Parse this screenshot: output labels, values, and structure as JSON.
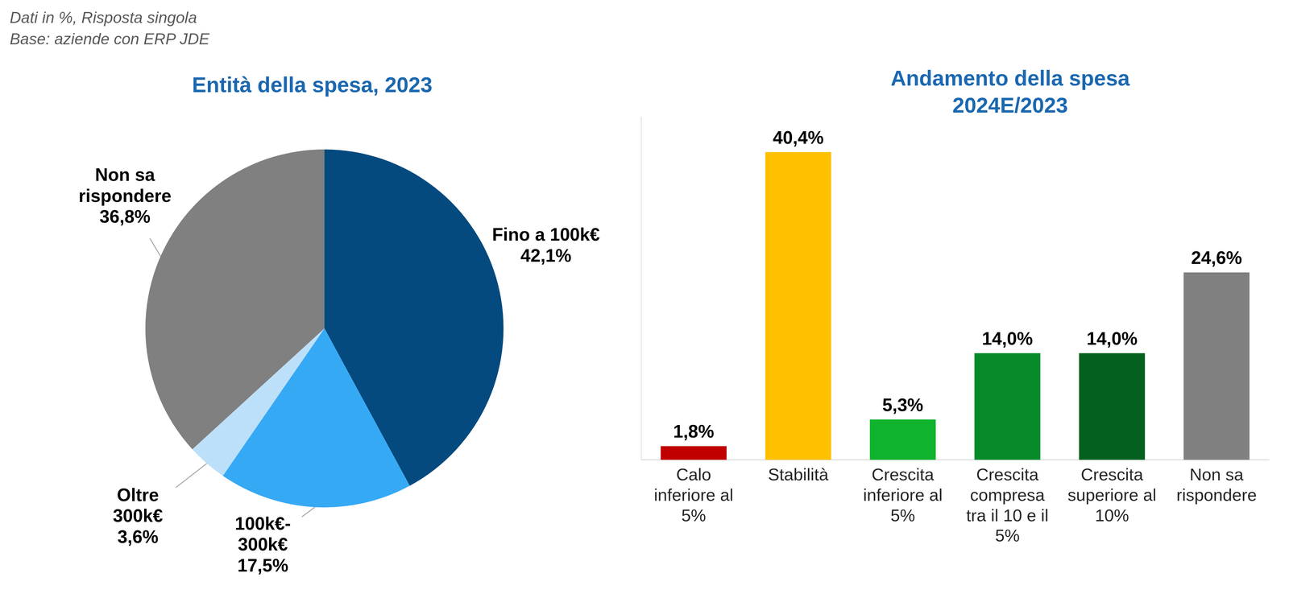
{
  "header": [
    "Dati in %, Risposta singola",
    "Base: aziende con ERP JDE"
  ],
  "chart_data": [
    {
      "type": "pie",
      "title": "Entità della spesa, 2023",
      "categories": [
        "Fino a 100k€",
        "100k€-300k€",
        "Oltre 300k€",
        "Non sa rispondere"
      ],
      "values": [
        42.1,
        17.5,
        3.6,
        36.8
      ],
      "value_labels": [
        "42,1%",
        "17,5%",
        "3,6%",
        "36,8%"
      ],
      "colors": [
        "#044A7E",
        "#36A9F5",
        "#BDE0FA",
        "#808080"
      ],
      "data_labels": true
    },
    {
      "type": "bar",
      "title": [
        "Andamento della spesa",
        "2024E/2023"
      ],
      "categories": [
        "Calo inferiore al 5%",
        "Stabilità",
        "Crescita inferiore al 5%",
        "Crescita compresa tra il 10 e il 5%",
        "Crescita superiore al 10%",
        "Non sa rispondere"
      ],
      "values": [
        1.8,
        40.4,
        5.3,
        14.0,
        14.0,
        24.6
      ],
      "value_labels": [
        "1,8%",
        "40,4%",
        "5,3%",
        "14,0%",
        "14,0%",
        "24,6%"
      ],
      "colors": [
        "#C00000",
        "#FFC000",
        "#10B32E",
        "#078A2A",
        "#04601E",
        "#808080"
      ],
      "ylim": [
        0,
        45
      ],
      "yticks": [],
      "grid": false,
      "data_labels": true,
      "tick_labels": "x"
    }
  ]
}
